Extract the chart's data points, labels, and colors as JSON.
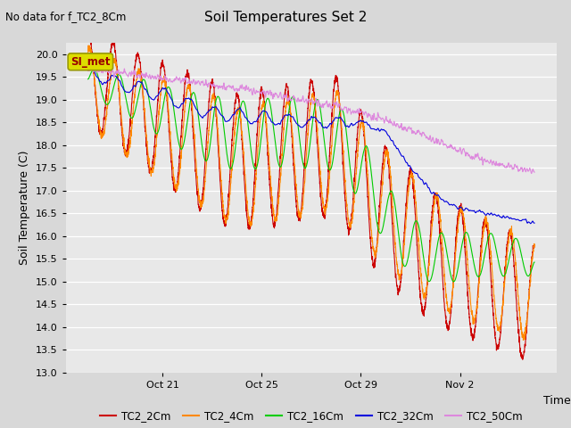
{
  "title": "Soil Temperatures Set 2",
  "subtitle": "No data for f_TC2_8Cm",
  "xlabel": "Time",
  "ylabel": "Soil Temperature (C)",
  "ylim": [
    13.0,
    20.25
  ],
  "yticks": [
    13.0,
    13.5,
    14.0,
    14.5,
    15.0,
    15.5,
    16.0,
    16.5,
    17.0,
    17.5,
    18.0,
    18.5,
    19.0,
    19.5,
    20.0
  ],
  "bg_color": "#d8d8d8",
  "plot_bg": "#e8e8e8",
  "series_colors": {
    "TC2_2Cm": "#cc0000",
    "TC2_4Cm": "#ff8800",
    "TC2_16Cm": "#00cc00",
    "TC2_32Cm": "#0000dd",
    "TC2_50Cm": "#dd88dd"
  },
  "si_met_box_color": "#dddd00",
  "si_met_text_color": "#990000",
  "total_days": 18,
  "n_points": 3000
}
